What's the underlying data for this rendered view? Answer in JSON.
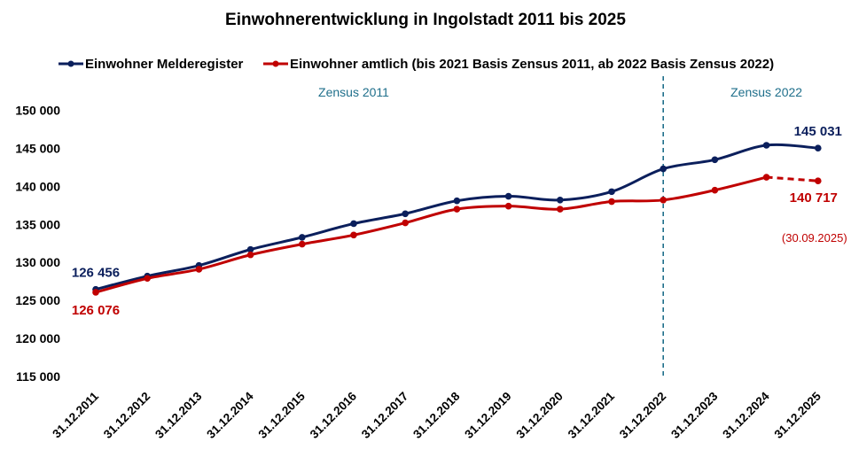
{
  "chart_data": {
    "type": "line",
    "title": "Einwohnerentwicklung  in Ingolstadt 2011 bis 2025",
    "categories": [
      "31.12.2011",
      "31.12.2012",
      "31.12.2013",
      "31.12.2014",
      "31.12.2015",
      "31.12.2016",
      "31.12.2017",
      "31.12.2018",
      "31.12.2019",
      "31.12.2020",
      "31.12.2021",
      "31.12.2022",
      "31.12.2023",
      "31.12.2024",
      "31.12.2025"
    ],
    "ylim": [
      115000,
      150000
    ],
    "yticks": [
      115000,
      120000,
      125000,
      130000,
      135000,
      140000,
      145000,
      150000
    ],
    "ytick_labels": [
      "115 000",
      "120 000",
      "125 000",
      "130 000",
      "135 000",
      "140 000",
      "145 000",
      "150 000"
    ],
    "grid": false,
    "legend_position": "top",
    "series": [
      {
        "name": "Einwohner Melderegister",
        "color": "#0b1f5c",
        "values": [
          126456,
          128200,
          129600,
          131700,
          133300,
          135100,
          136400,
          138100,
          138700,
          138200,
          139300,
          142300,
          143500,
          145400,
          145031
        ]
      },
      {
        "name": "Einwohner amtlich (bis 2021 Basis Zensus 2011, ab 2022 Basis Zensus 2022)",
        "color": "#c00000",
        "values": [
          126076,
          127900,
          129100,
          131000,
          132400,
          133600,
          135200,
          137000,
          137400,
          137000,
          138000,
          138200,
          139500,
          141200,
          140717
        ],
        "dashed_from_index": 13
      }
    ],
    "annotations": {
      "zone_left": "Zensus 2011",
      "zone_right": "Zensus 2022",
      "divider_category": "31.12.2022",
      "start_blue": "126 456",
      "start_red": "126 076",
      "end_blue": "145 031",
      "end_red": "140 717",
      "end_red_note": "(30.09.2025)"
    }
  }
}
